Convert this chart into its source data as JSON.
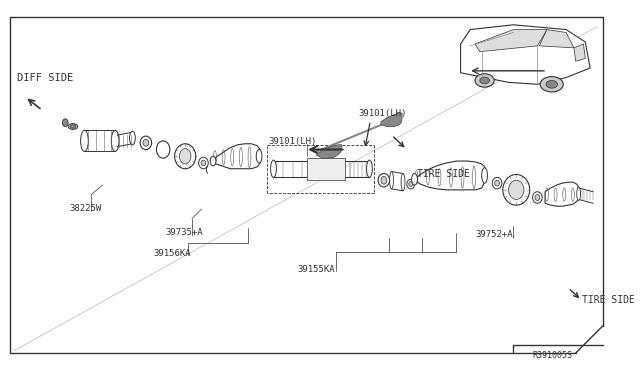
{
  "bg_color": "#ffffff",
  "line_color": "#333333",
  "fig_width": 6.4,
  "fig_height": 3.72,
  "dpi": 100,
  "labels": {
    "diff_side": "DIFF SIDE",
    "tire_side_1": "TIRE SIDE",
    "tire_side_2": "TIRE SIDE",
    "p38225W": "38225W",
    "p39735A": "39735+A",
    "p39156KA": "39156KA",
    "p39101LH_a": "39101(LH)",
    "p39101LH_b": "39101(LH)",
    "p39155KA": "39155KA",
    "p39752A": "39752+A",
    "ref": "R391005S"
  }
}
